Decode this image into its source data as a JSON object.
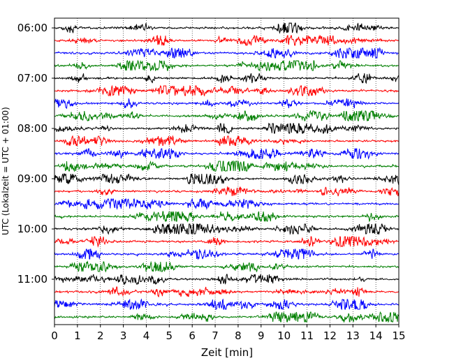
{
  "chart_data": {
    "type": "line",
    "title": "",
    "xlabel": "Zeit  [min]",
    "ylabel": "UTC (Lokalzeit = UTC + 01:00)",
    "x_range": [
      0,
      15
    ],
    "x_ticks": [
      "0",
      "1",
      "2",
      "3",
      "4",
      "5",
      "6",
      "7",
      "8",
      "9",
      "10",
      "11",
      "12",
      "13",
      "14",
      "15"
    ],
    "y_tick_labels": [
      "06:00",
      "07:00",
      "08:00",
      "09:00",
      "10:00",
      "11:00"
    ],
    "grid": "vertical dotted lines at each minute",
    "trace_interval_min": 15,
    "trace_count": 24,
    "trace_colors": [
      "#000000",
      "#ff0000",
      "#0000ff",
      "#007f00"
    ],
    "trace_start_times": [
      "06:00",
      "06:15",
      "06:30",
      "06:45",
      "07:00",
      "07:15",
      "07:30",
      "07:45",
      "08:00",
      "08:15",
      "08:30",
      "08:45",
      "09:00",
      "09:15",
      "09:30",
      "09:45",
      "10:00",
      "10:15",
      "10:30",
      "10:45",
      "11:00",
      "11:15",
      "11:30",
      "11:45"
    ]
  }
}
